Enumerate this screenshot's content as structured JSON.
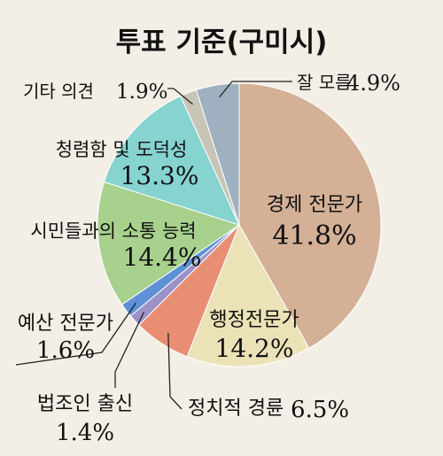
{
  "chart_data": {
    "type": "pie",
    "title": "투표 기준(구미시)",
    "slices": [
      {
        "label": "경제 전문가",
        "value": 41.8,
        "value_label": "41.8%",
        "color": "#d4b096"
      },
      {
        "label": "행정전문가",
        "value": 14.2,
        "value_label": "14.2%",
        "color": "#ece2b8"
      },
      {
        "label": "정치적 경륜",
        "value": 6.5,
        "value_label": "6.5%",
        "color": "#e88e73"
      },
      {
        "label": "법조인 출신",
        "value": 1.4,
        "value_label": "1.4%",
        "color": "#9c92c6"
      },
      {
        "label": "예산 전문가",
        "value": 1.6,
        "value_label": "1.6%",
        "color": "#5e90d6"
      },
      {
        "label": "시민들과의 소통 능력",
        "value": 14.4,
        "value_label": "14.4%",
        "color": "#a7d18c"
      },
      {
        "label": "청렴함 및 도덕성",
        "value": 13.3,
        "value_label": "13.3%",
        "color": "#86d3d0"
      },
      {
        "label": "기타 의견",
        "value": 1.9,
        "value_label": "1.9%",
        "color": "#c9c5b6"
      },
      {
        "label": "잘 모름",
        "value": 4.9,
        "value_label": "4.9%",
        "color": "#9fb1c1"
      }
    ]
  }
}
